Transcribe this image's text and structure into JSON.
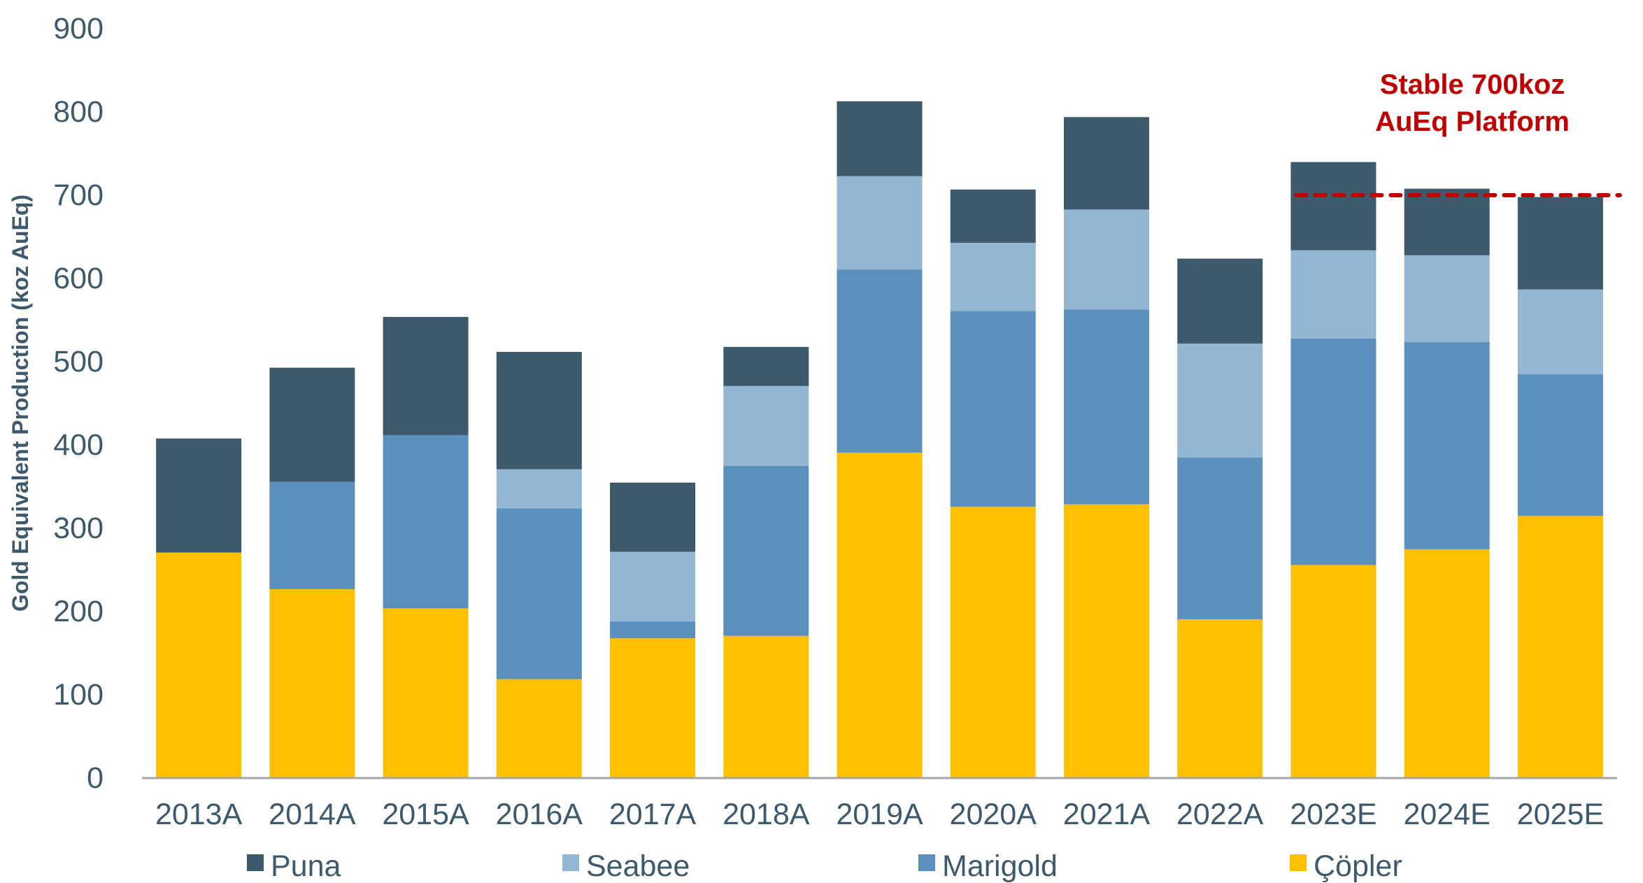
{
  "chart_data": {
    "type": "bar",
    "stacked": true,
    "title": "",
    "xlabel": "",
    "ylabel": "Gold Equivalent Production (koz AuEq)",
    "ylim": [
      0,
      900
    ],
    "yticks": [
      0,
      100,
      200,
      300,
      400,
      500,
      600,
      700,
      800,
      900
    ],
    "grid": false,
    "legend_position": "bottom",
    "categories": [
      "2013A",
      "2014A",
      "2015A",
      "2016A",
      "2017A",
      "2018A",
      "2019A",
      "2020A",
      "2021A",
      "2022A",
      "2023E",
      "2024E",
      "2025E"
    ],
    "series": [
      {
        "name": "Çöpler",
        "color": "#FFC000",
        "values": [
          270,
          226,
          203,
          118,
          167,
          170,
          390,
          325,
          328,
          190,
          255,
          274,
          314
        ]
      },
      {
        "name": "Marigold",
        "color": "#5A8FBE",
        "values": [
          0,
          129,
          208,
          205,
          20,
          204,
          220,
          235,
          234,
          194,
          272,
          249,
          170
        ]
      },
      {
        "name": "Seabee",
        "color": "#93B6D3",
        "values": [
          0,
          0,
          0,
          47,
          84,
          96,
          112,
          82,
          120,
          137,
          106,
          104,
          102
        ]
      },
      {
        "name": "Puna",
        "color": "#3D5A6C",
        "values": [
          137,
          137,
          142,
          141,
          83,
          47,
          90,
          64,
          111,
          102,
          106,
          80,
          111
        ]
      }
    ],
    "legend_order": [
      "Puna",
      "Seabee",
      "Marigold",
      "Çöpler"
    ],
    "reference_line": {
      "value": 700,
      "color": "#C00000",
      "style": "dashed",
      "from_category": "2023E",
      "to_category": "2025E",
      "label_lines": [
        "Stable 700koz",
        "AuEq Platform"
      ]
    }
  },
  "colors": {
    "text": "#3D5A6C",
    "axis": "#A6A6A6",
    "annotation": "#C00000"
  }
}
